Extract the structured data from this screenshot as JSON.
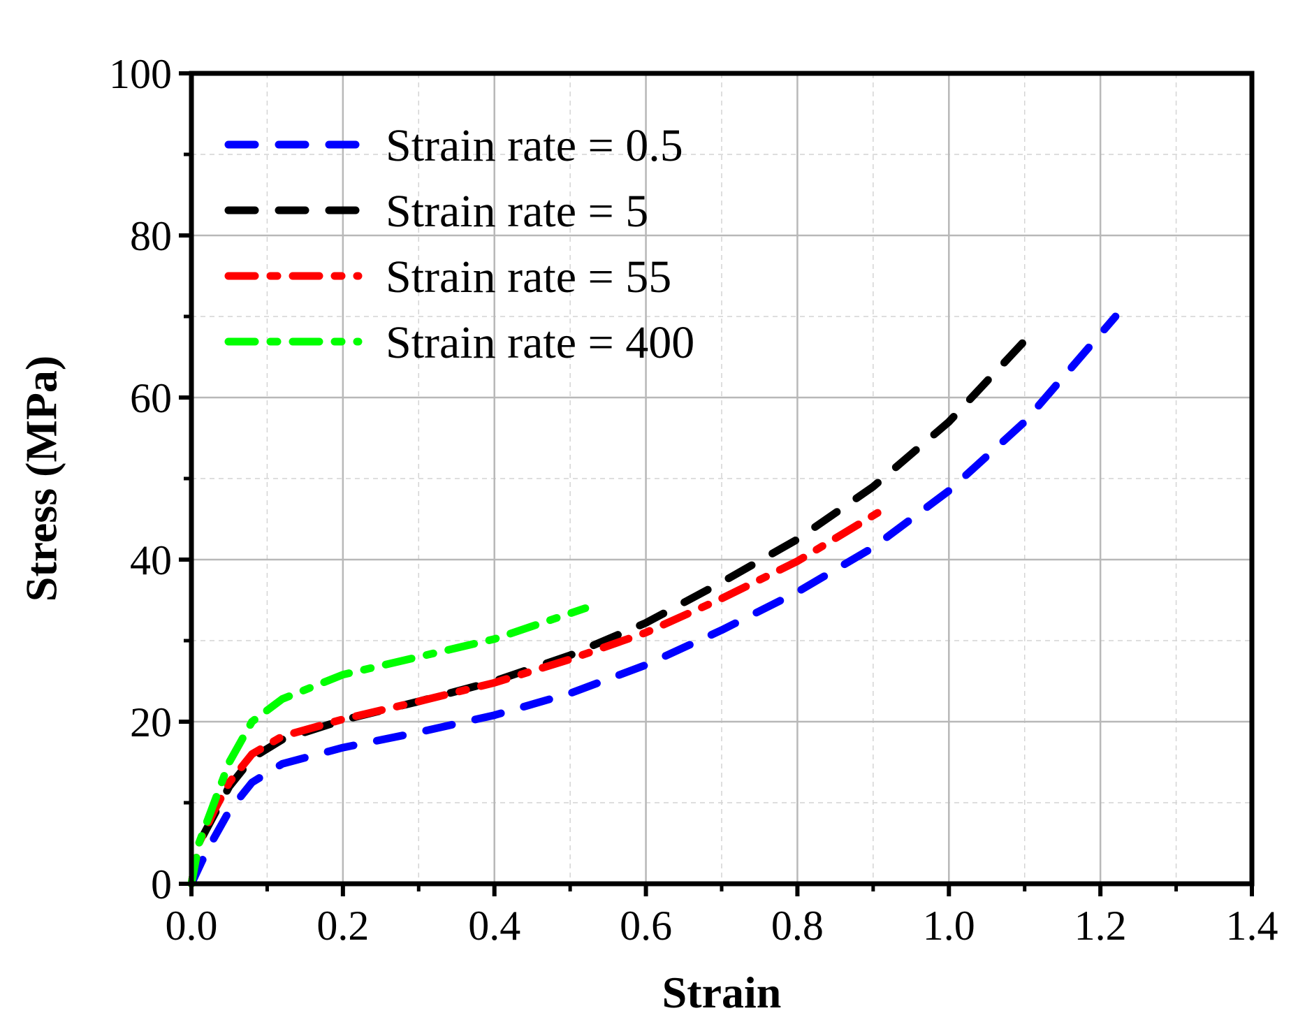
{
  "chart_data": {
    "type": "line",
    "title": "",
    "xlabel": "Strain",
    "ylabel": "Stress (MPa)",
    "xlim": [
      0,
      1.4
    ],
    "ylim": [
      0,
      100
    ],
    "x_ticks": [
      0.0,
      0.2,
      0.4,
      0.6,
      0.8,
      1.0,
      1.2,
      1.4
    ],
    "x_tick_labels": [
      "0.0",
      "0.2",
      "0.4",
      "0.6",
      "0.8",
      "1.0",
      "1.2",
      "1.4"
    ],
    "y_ticks": [
      0,
      20,
      40,
      60,
      80,
      100
    ],
    "y_tick_labels": [
      "0",
      "20",
      "40",
      "60",
      "80",
      "100"
    ],
    "grid": true,
    "legend_position": "top-left",
    "series": [
      {
        "name": "Strain rate = 0.5",
        "color": "#0000ff",
        "line_style": "dashed",
        "x": [
          0.0,
          0.02,
          0.05,
          0.08,
          0.12,
          0.2,
          0.3,
          0.4,
          0.5,
          0.6,
          0.7,
          0.8,
          0.9,
          1.0,
          1.1,
          1.22
        ],
        "y": [
          0,
          4,
          9,
          12.5,
          14.8,
          16.8,
          18.7,
          20.8,
          23.5,
          27,
          31.3,
          36,
          41.5,
          48.5,
          57,
          70
        ]
      },
      {
        "name": "Strain rate = 5",
        "color": "#000000",
        "line_style": "dashed",
        "x": [
          0.0,
          0.01,
          0.03,
          0.05,
          0.08,
          0.12,
          0.2,
          0.3,
          0.4,
          0.5,
          0.6,
          0.7,
          0.8,
          0.9,
          1.0,
          1.11
        ],
        "y": [
          0,
          5,
          8.5,
          12,
          15.5,
          17.8,
          20.2,
          22.5,
          25,
          28.2,
          32.2,
          37.2,
          42.5,
          49,
          57,
          68
        ]
      },
      {
        "name": "Strain rate = 55",
        "color": "#ff0000",
        "line_style": "dashdot",
        "x": [
          0.0,
          0.01,
          0.03,
          0.05,
          0.08,
          0.12,
          0.2,
          0.3,
          0.4,
          0.5,
          0.6,
          0.7,
          0.8,
          0.91
        ],
        "y": [
          0,
          5,
          9,
          12.5,
          16,
          18.2,
          20.3,
          22.5,
          24.8,
          27.7,
          31,
          35.2,
          39.8,
          46
        ]
      },
      {
        "name": "Strain rate = 400",
        "color": "#00ff00",
        "line_style": "dashdot",
        "x": [
          0.0,
          0.01,
          0.03,
          0.05,
          0.08,
          0.12,
          0.2,
          0.3,
          0.4,
          0.52
        ],
        "y": [
          0,
          5,
          10,
          15,
          20,
          22.8,
          25.8,
          28,
          30.2,
          34
        ]
      }
    ]
  }
}
